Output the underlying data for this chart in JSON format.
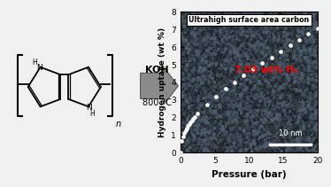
{
  "title": "Ultrahigh surface area carbon",
  "xlabel": "Pressure (bar)",
  "ylabel": "Hydrogen uptake (wt %)",
  "annotation": "7.03 wt% H₂",
  "scalebar_label": "10 nm",
  "arrow_text_line1": "KOH",
  "arrow_text_line2": "800 °C",
  "xlim": [
    0,
    20
  ],
  "ylim": [
    0,
    8
  ],
  "yticks": [
    0,
    1,
    2,
    3,
    4,
    5,
    6,
    7,
    8
  ],
  "xticks": [
    0,
    5,
    10,
    15,
    20
  ],
  "curve_params": [
    3.8,
    0.9,
    0.16
  ],
  "figure_bg": "#f0f0f0",
  "sem_bg_base": 0.28,
  "sem_bg_std": 0.13
}
